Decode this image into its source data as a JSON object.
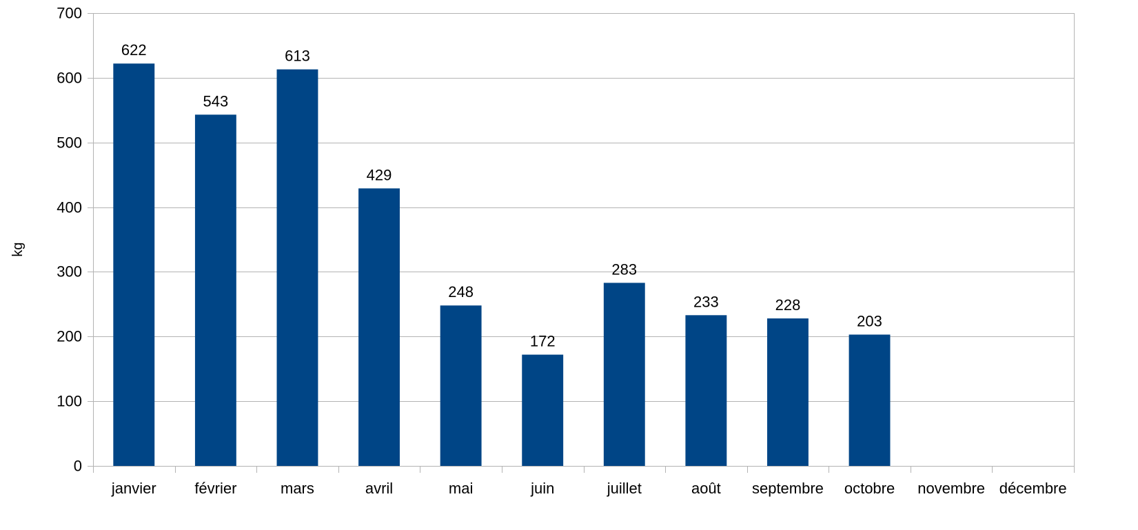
{
  "chart_data": {
    "type": "bar",
    "title": "",
    "xlabel": "",
    "ylabel": "kg",
    "ylim": [
      0,
      700
    ],
    "yticks": [
      0,
      100,
      200,
      300,
      400,
      500,
      600,
      700
    ],
    "grid": true,
    "legend": "none",
    "categories": [
      "janvier",
      "février",
      "mars",
      "avril",
      "mai",
      "juin",
      "juillet",
      "août",
      "septembre",
      "octobre",
      "novembre",
      "décembre"
    ],
    "values": [
      622,
      543,
      613,
      429,
      248,
      172,
      283,
      233,
      228,
      203,
      null,
      null
    ],
    "data_labels": [
      "622",
      "543",
      "613",
      "429",
      "248",
      "172",
      "283",
      "233",
      "228",
      "203",
      "",
      ""
    ],
    "colors": {
      "bar": "#004586",
      "grid": "#b3b3b3",
      "axis": "#b3b3b3"
    }
  }
}
